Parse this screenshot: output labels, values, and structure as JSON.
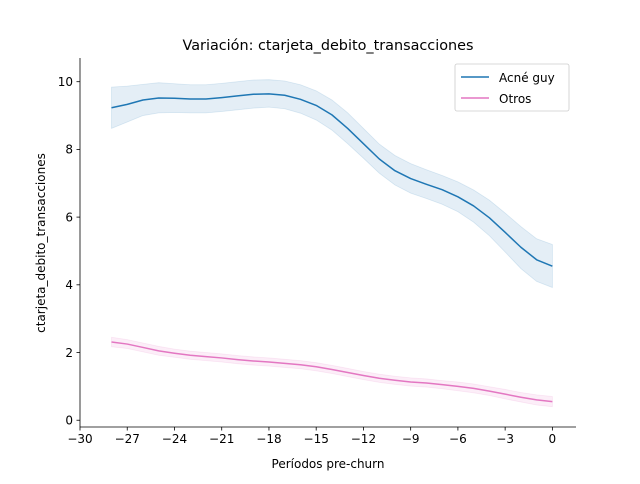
{
  "chart_data": {
    "type": "line",
    "title": "Variación: ctarjeta_debito_transacciones",
    "xlabel": "Períodos pre-churn",
    "ylabel": "ctarjeta_debito_transacciones",
    "xlim": [
      -30,
      1.5
    ],
    "ylim": [
      -0.2,
      10.7
    ],
    "xticks": [
      -30,
      -27,
      -24,
      -21,
      -18,
      -15,
      -12,
      -9,
      -6,
      -3,
      0
    ],
    "xtick_labels": [
      "−30",
      "−27",
      "−24",
      "−21",
      "−18",
      "−15",
      "−12",
      "−9",
      "−6",
      "−3",
      "0"
    ],
    "yticks": [
      0,
      2,
      4,
      6,
      8,
      10
    ],
    "ytick_labels": [
      "0",
      "2",
      "4",
      "6",
      "8",
      "10"
    ],
    "grid": false,
    "legend_position": "top-right",
    "x": [
      -28,
      -27,
      -26,
      -25,
      -24,
      -23,
      -22,
      -21,
      -20,
      -19,
      -18,
      -17,
      -16,
      -15,
      -14,
      -13,
      -12,
      -11,
      -10,
      -9,
      -8,
      -7,
      -6,
      -5,
      -4,
      -3,
      -2,
      -1,
      0
    ],
    "series": [
      {
        "name": "Acné guy",
        "color": "#1f77b4",
        "values": [
          9.23,
          9.33,
          9.46,
          9.52,
          9.51,
          9.49,
          9.49,
          9.53,
          9.58,
          9.63,
          9.64,
          9.6,
          9.48,
          9.3,
          9.02,
          8.62,
          8.17,
          7.72,
          7.37,
          7.14,
          6.97,
          6.81,
          6.6,
          6.33,
          5.98,
          5.55,
          5.11,
          4.74,
          4.55
        ],
        "lower": [
          8.62,
          8.81,
          9.0,
          9.08,
          9.09,
          9.08,
          9.08,
          9.12,
          9.17,
          9.22,
          9.25,
          9.2,
          9.07,
          8.87,
          8.57,
          8.17,
          7.74,
          7.3,
          6.95,
          6.71,
          6.55,
          6.38,
          6.16,
          5.85,
          5.45,
          4.97,
          4.48,
          4.1,
          3.92
        ],
        "upper": [
          9.84,
          9.87,
          9.92,
          9.97,
          9.94,
          9.91,
          9.91,
          9.95,
          10.0,
          10.05,
          10.06,
          10.02,
          9.91,
          9.73,
          9.46,
          9.08,
          8.62,
          8.16,
          7.82,
          7.58,
          7.4,
          7.23,
          7.04,
          6.8,
          6.5,
          6.12,
          5.72,
          5.36,
          5.19
        ]
      },
      {
        "name": "Otros",
        "color": "#e377c2",
        "values": [
          2.31,
          2.25,
          2.15,
          2.05,
          1.98,
          1.92,
          1.88,
          1.84,
          1.79,
          1.75,
          1.72,
          1.68,
          1.64,
          1.58,
          1.5,
          1.41,
          1.32,
          1.24,
          1.18,
          1.13,
          1.1,
          1.05,
          1.0,
          0.94,
          0.86,
          0.77,
          0.68,
          0.6,
          0.55
        ],
        "lower": [
          2.17,
          2.12,
          2.02,
          1.92,
          1.86,
          1.8,
          1.76,
          1.72,
          1.67,
          1.63,
          1.6,
          1.56,
          1.52,
          1.46,
          1.38,
          1.29,
          1.2,
          1.12,
          1.06,
          1.01,
          0.98,
          0.93,
          0.87,
          0.81,
          0.73,
          0.63,
          0.54,
          0.45,
          0.4
        ],
        "upper": [
          2.45,
          2.38,
          2.28,
          2.18,
          2.1,
          2.04,
          2.0,
          1.96,
          1.91,
          1.87,
          1.84,
          1.8,
          1.76,
          1.7,
          1.62,
          1.53,
          1.44,
          1.36,
          1.3,
          1.25,
          1.22,
          1.17,
          1.13,
          1.07,
          0.99,
          0.91,
          0.82,
          0.75,
          0.7
        ]
      }
    ]
  }
}
